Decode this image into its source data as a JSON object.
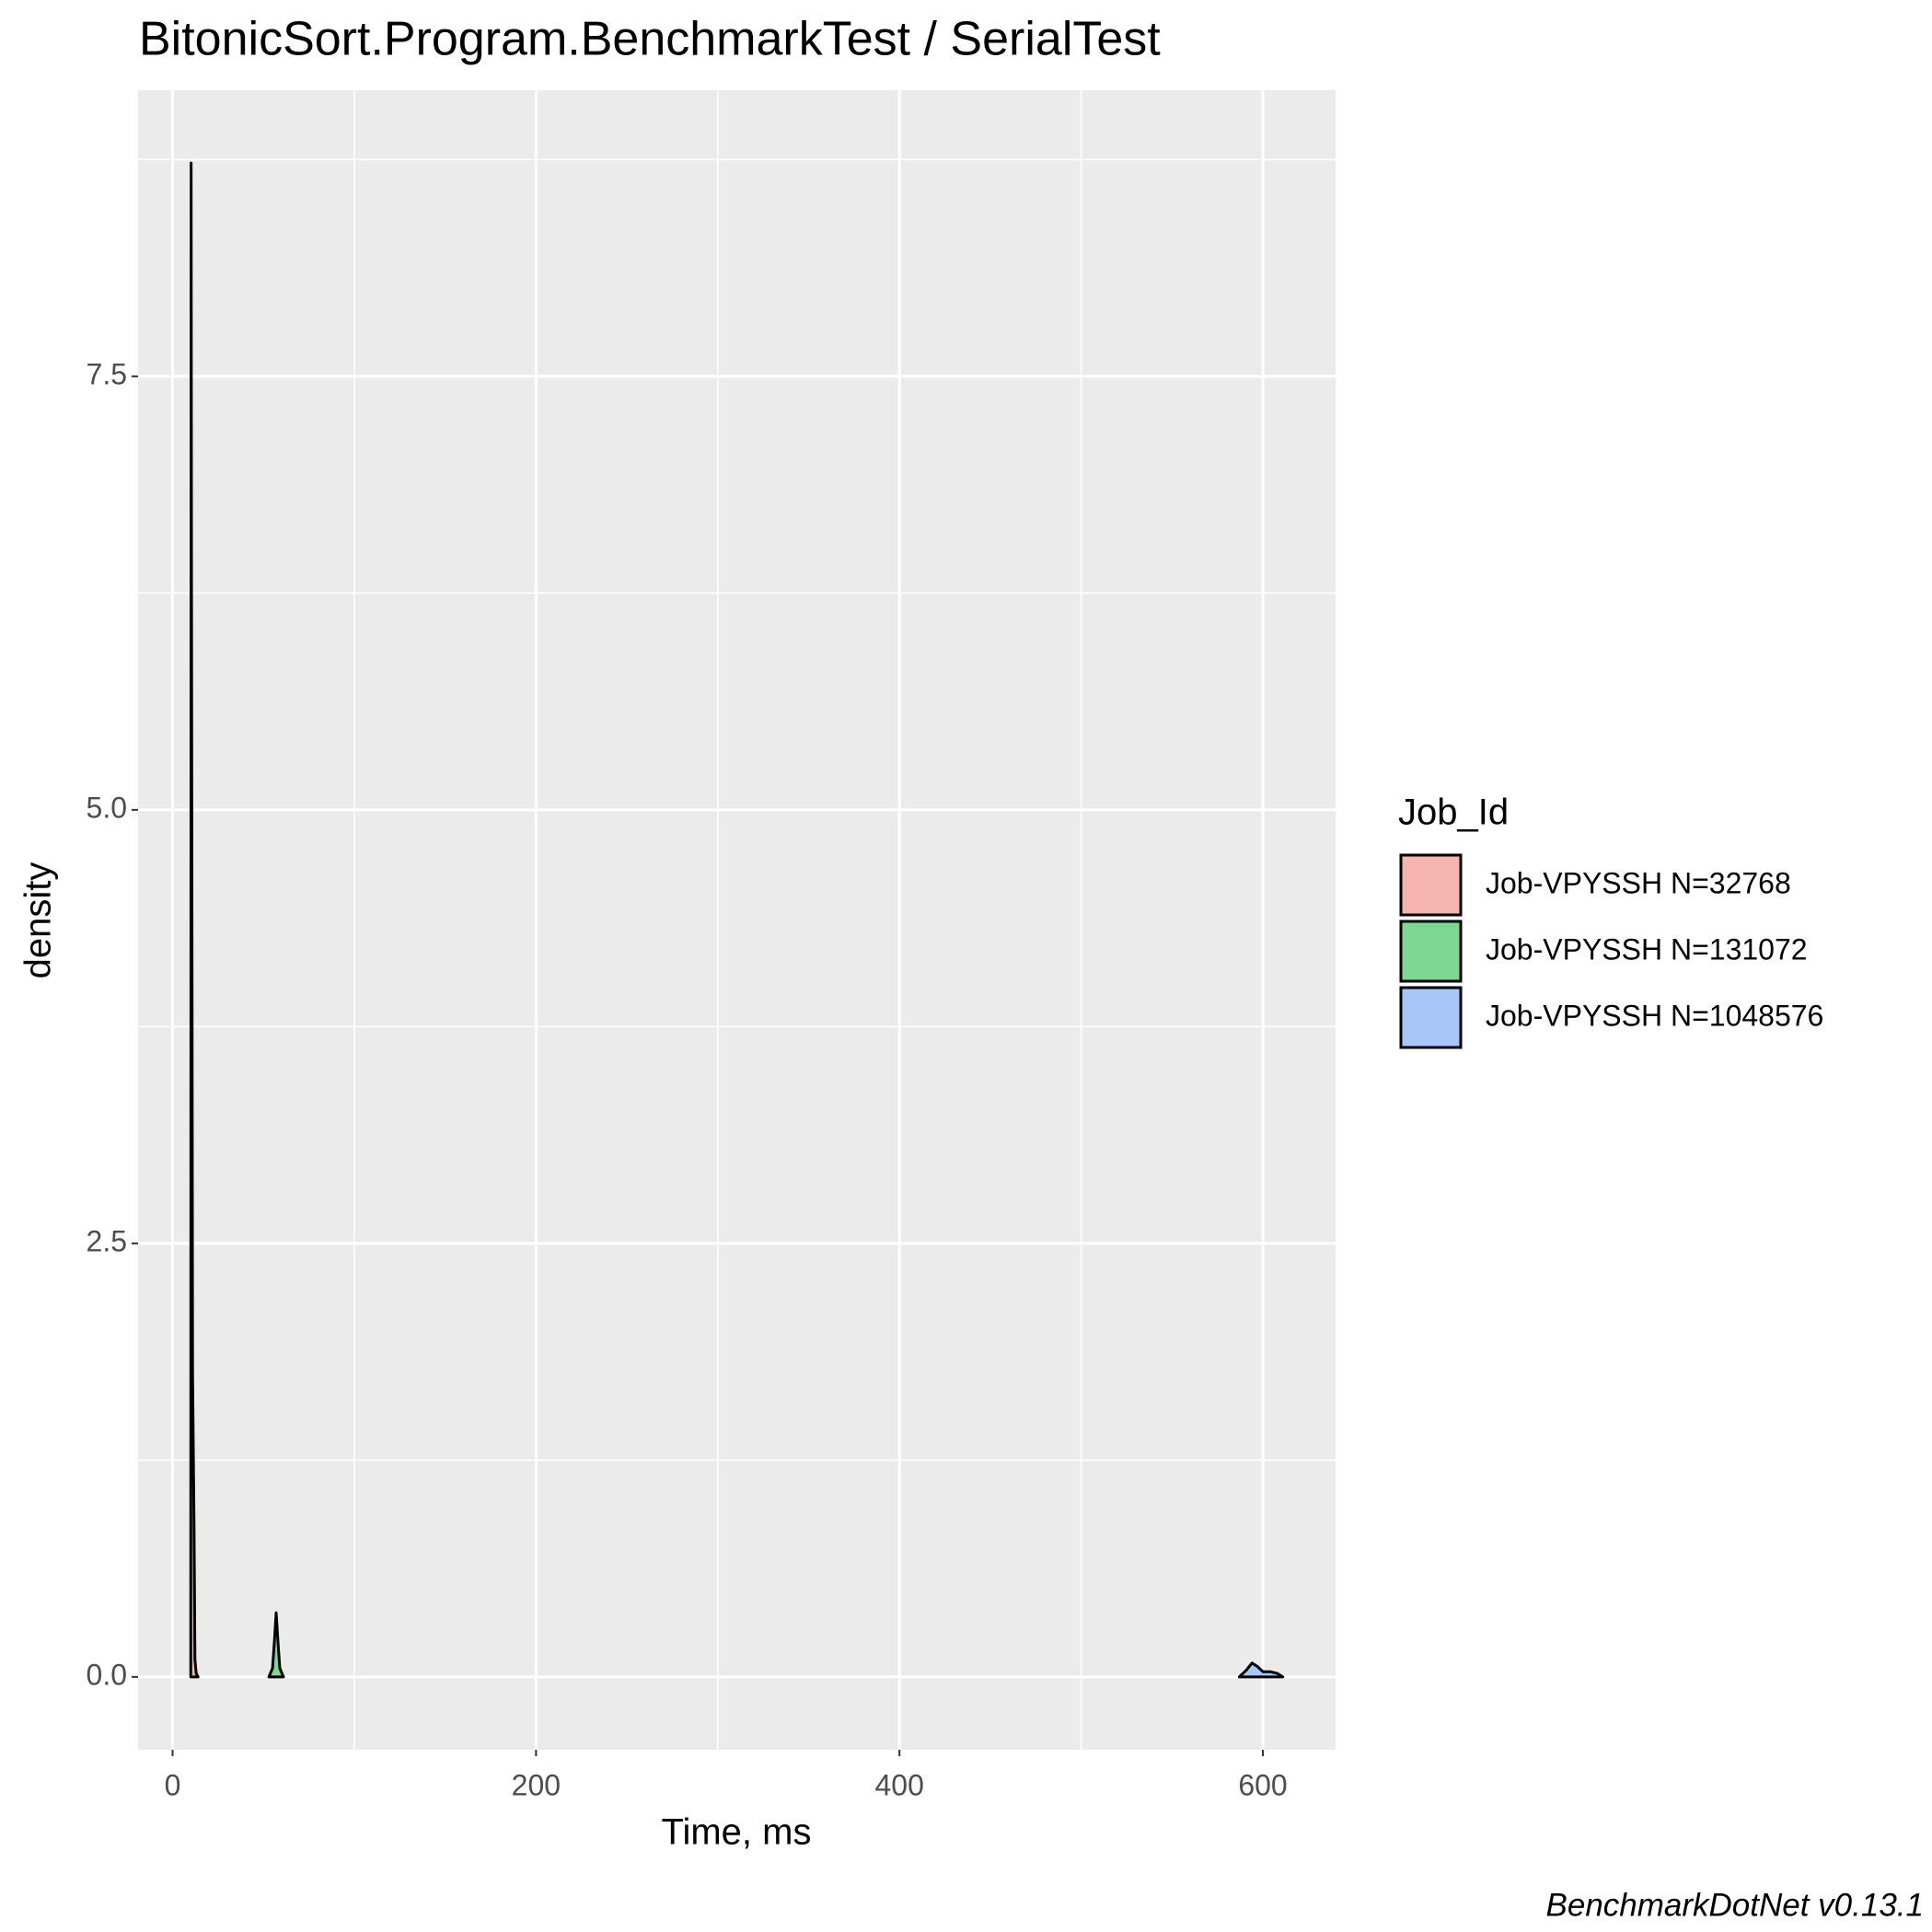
{
  "chart_data": {
    "type": "density",
    "title": "BitonicSort.Program.BenchmarkTest / SerialTest",
    "x_label": "Time, ms",
    "y_label": "density",
    "legend_title": "Job_Id",
    "legend_position": "right",
    "caption": "BenchmarkDotNet v0.13.1",
    "xlim": [
      -19,
      640
    ],
    "ylim": [
      -0.42,
      9.15
    ],
    "xticks": [
      0,
      200,
      400,
      600
    ],
    "yticks": [
      {
        "value": 0,
        "label": "0.0"
      },
      {
        "value": 2.5,
        "label": "2.5"
      },
      {
        "value": 5,
        "label": "5.0"
      },
      {
        "value": 7.5,
        "label": "7.5"
      }
    ],
    "x_minor_grid": [
      100,
      300,
      500
    ],
    "y_minor_grid": [
      1.25,
      3.75,
      6.25,
      8.75
    ],
    "grid": true,
    "series": [
      {
        "name": "Job-VPYSSH N=32768",
        "color": "#f4b4b0",
        "x": [
          10.0,
          10.2,
          10.4,
          10.7,
          11.0,
          11.8,
          12.3,
          13.0,
          14.0
        ],
        "values": [
          0,
          8.73,
          6.4,
          4.05,
          1.75,
          0.87,
          0.1,
          0.02,
          0
        ]
      },
      {
        "name": "Job-VPYSSH N=131072",
        "color": "#7dd694",
        "x": [
          53,
          55,
          56,
          57,
          58,
          59,
          61
        ],
        "values": [
          0,
          0.05,
          0.2,
          0.37,
          0.2,
          0.05,
          0
        ]
      },
      {
        "name": "Job-VPYSSH N=1048576",
        "color": "#a9c6f9",
        "x": [
          587,
          591,
          594,
          597,
          600,
          604,
          608,
          611
        ],
        "values": [
          0,
          0.04,
          0.08,
          0.06,
          0.03,
          0.03,
          0.02,
          0
        ]
      }
    ]
  }
}
